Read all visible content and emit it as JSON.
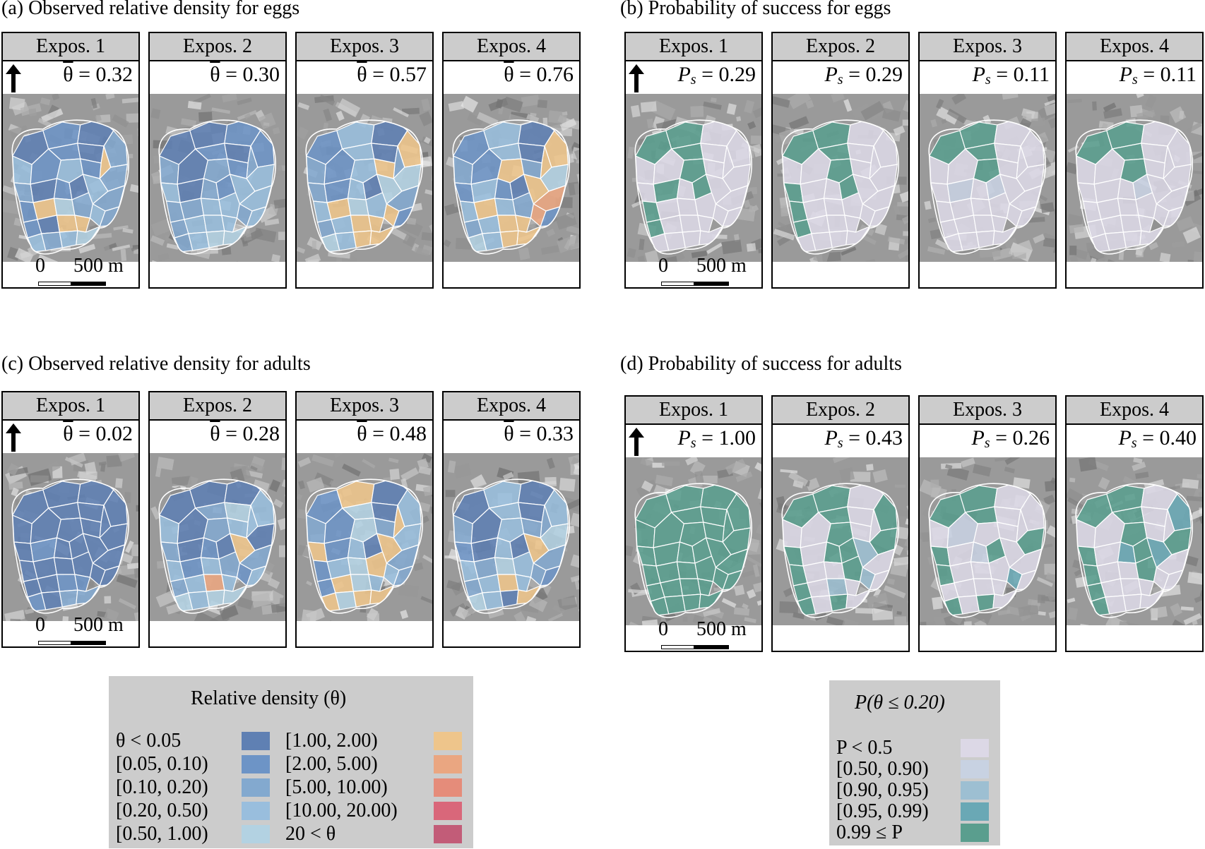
{
  "sections": [
    {
      "id": "a",
      "title": "(a) Observed relative density for eggs"
    },
    {
      "id": "b",
      "title": "(b) Probability of success for eggs"
    },
    {
      "id": "c",
      "title": "(c) Observed relative density for adults"
    },
    {
      "id": "d",
      "title": "(d) Probability of success for adults"
    }
  ],
  "scalebar": {
    "zero": "0",
    "distance": "500 m"
  },
  "colors": {
    "density": [
      "#5f80b3",
      "#6d94c6",
      "#83a9cf",
      "#99bedd",
      "#b3d2e2",
      "#eec58b",
      "#eaa681",
      "#e58c7a",
      "#d9677a",
      "#c25c78"
    ],
    "probability": [
      "#dcd8e6",
      "#c8d2e2",
      "#9dbfd2",
      "#6aa8b5",
      "#5a9e8e"
    ]
  },
  "panels": {
    "a": [
      {
        "label": "Expos. 1",
        "symbol": "θ",
        "value": "0.32",
        "cells": [
          0,
          1,
          0,
          2,
          3,
          1,
          1,
          0,
          5,
          2,
          3,
          1,
          2,
          0,
          1,
          0,
          3,
          2,
          1,
          5,
          4,
          2,
          3,
          2,
          1,
          0,
          5,
          5,
          3,
          2,
          3,
          4
        ]
      },
      {
        "label": "Expos. 2",
        "symbol": "θ",
        "value": "0.30",
        "cells": [
          0,
          0,
          1,
          1,
          2,
          0,
          1,
          0,
          2,
          3,
          2,
          1,
          3,
          0,
          2,
          1,
          3,
          3,
          2,
          2,
          3,
          3,
          2,
          3,
          2,
          3,
          3,
          3,
          2,
          3,
          4,
          4
        ]
      },
      {
        "label": "Expos. 3",
        "symbol": "θ",
        "value": "0.57",
        "cells": [
          1,
          3,
          0,
          5,
          2,
          1,
          3,
          0,
          2,
          4,
          3,
          5,
          2,
          1,
          3,
          0,
          4,
          2,
          3,
          5,
          4,
          3,
          5,
          1,
          2,
          3,
          5,
          5,
          4,
          3,
          5,
          5
        ]
      },
      {
        "label": "Expos. 4",
        "symbol": "θ",
        "value": "0.76",
        "cells": [
          1,
          3,
          0,
          5,
          2,
          1,
          3,
          0,
          5,
          4,
          5,
          2,
          1,
          3,
          1,
          0,
          5,
          6,
          3,
          5,
          3,
          2,
          6,
          1,
          2,
          3,
          5,
          5,
          4,
          3,
          5,
          5
        ]
      }
    ],
    "b": [
      {
        "label": "Expos. 1",
        "symbol": "Ps",
        "value": "0.29",
        "cells": [
          4,
          4,
          0,
          0,
          0,
          0,
          4,
          0,
          0,
          0,
          4,
          0,
          0,
          4,
          0,
          4,
          0,
          0,
          4,
          0,
          0,
          0,
          0,
          0,
          4,
          0,
          0,
          0,
          0,
          0,
          0,
          0
        ]
      },
      {
        "label": "Expos. 2",
        "symbol": "Ps",
        "value": "0.29",
        "cells": [
          4,
          4,
          0,
          0,
          0,
          0,
          4,
          0,
          0,
          0,
          4,
          0,
          4,
          0,
          0,
          4,
          0,
          0,
          4,
          0,
          0,
          0,
          0,
          0,
          4,
          0,
          0,
          0,
          0,
          0,
          0,
          0
        ]
      },
      {
        "label": "Expos. 3",
        "symbol": "Ps",
        "value": "0.11",
        "cells": [
          4,
          4,
          0,
          0,
          0,
          0,
          4,
          0,
          0,
          0,
          4,
          0,
          0,
          1,
          0,
          1,
          0,
          0,
          0,
          0,
          0,
          0,
          0,
          0,
          0,
          0,
          0,
          0,
          0,
          0,
          0,
          0
        ]
      },
      {
        "label": "Expos. 4",
        "symbol": "Ps",
        "value": "0.11",
        "cells": [
          4,
          4,
          0,
          0,
          0,
          0,
          4,
          0,
          0,
          0,
          4,
          0,
          0,
          0,
          0,
          1,
          0,
          0,
          0,
          0,
          0,
          0,
          0,
          0,
          0,
          0,
          0,
          0,
          0,
          0,
          0,
          0
        ]
      }
    ],
    "c": [
      {
        "label": "Expos. 1",
        "symbol": "θ",
        "value": "0.02",
        "cells": [
          0,
          0,
          0,
          0,
          0,
          0,
          0,
          0,
          0,
          0,
          0,
          0,
          0,
          1,
          0,
          0,
          0,
          0,
          0,
          0,
          0,
          0,
          0,
          0,
          0,
          0,
          1,
          1,
          1,
          0,
          2,
          2
        ]
      },
      {
        "label": "Expos. 2",
        "symbol": "θ",
        "value": "0.28",
        "cells": [
          0,
          0,
          0,
          3,
          3,
          0,
          2,
          4,
          3,
          0,
          2,
          3,
          2,
          0,
          1,
          0,
          5,
          2,
          3,
          1,
          3,
          2,
          1,
          3,
          2,
          3,
          6,
          3,
          4,
          3,
          4,
          4
        ]
      },
      {
        "label": "Expos. 3",
        "symbol": "θ",
        "value": "0.48",
        "cells": [
          1,
          5,
          0,
          3,
          2,
          1,
          4,
          0,
          5,
          3,
          4,
          2,
          5,
          1,
          3,
          0,
          5,
          2,
          1,
          3,
          4,
          5,
          3,
          2,
          1,
          5,
          4,
          3,
          5,
          4,
          5,
          5
        ]
      },
      {
        "label": "Expos. 4",
        "symbol": "θ",
        "value": "0.33",
        "cells": [
          0,
          3,
          0,
          3,
          2,
          0,
          3,
          0,
          2,
          4,
          3,
          2,
          1,
          0,
          3,
          0,
          5,
          2,
          3,
          2,
          4,
          3,
          2,
          1,
          2,
          3,
          5,
          3,
          4,
          3,
          0,
          5
        ]
      }
    ],
    "d": [
      {
        "label": "Expos. 1",
        "symbol": "Ps",
        "value": "1.00",
        "cells": [
          4,
          4,
          4,
          4,
          4,
          4,
          4,
          4,
          4,
          4,
          4,
          4,
          4,
          4,
          4,
          4,
          4,
          4,
          4,
          4,
          4,
          4,
          4,
          4,
          4,
          4,
          4,
          4,
          4,
          4,
          4,
          4
        ]
      },
      {
        "label": "Expos. 2",
        "symbol": "Ps",
        "value": "0.43",
        "cells": [
          4,
          4,
          0,
          4,
          0,
          0,
          4,
          0,
          0,
          4,
          4,
          0,
          4,
          0,
          4,
          4,
          2,
          0,
          4,
          0,
          0,
          4,
          2,
          0,
          4,
          0,
          2,
          0,
          4,
          0,
          4,
          0
        ]
      },
      {
        "label": "Expos. 3",
        "symbol": "Ps",
        "value": "0.26",
        "cells": [
          4,
          4,
          0,
          0,
          0,
          1,
          4,
          0,
          0,
          4,
          0,
          0,
          4,
          0,
          1,
          4,
          0,
          0,
          4,
          0,
          0,
          0,
          3,
          0,
          0,
          0,
          0,
          0,
          4,
          0,
          4,
          0
        ]
      },
      {
        "label": "Expos. 4",
        "symbol": "Ps",
        "value": "0.40",
        "cells": [
          4,
          4,
          0,
          3,
          0,
          0,
          4,
          0,
          0,
          4,
          4,
          0,
          4,
          0,
          3,
          4,
          3,
          0,
          4,
          0,
          0,
          4,
          0,
          0,
          4,
          0,
          0,
          0,
          4,
          0,
          0,
          0
        ]
      }
    ]
  },
  "legend_density": {
    "title": "Relative density (θ)",
    "items": [
      "θ < 0.05",
      "[0.05, 0.10)",
      "[0.10, 0.20)",
      "[0.20, 0.50)",
      "[0.50, 1.00)",
      "[1.00, 2.00)",
      "[2.00, 5.00)",
      "[5.00, 10.00)",
      "[10.00, 20.00)",
      "20 < θ"
    ]
  },
  "legend_probability": {
    "title": "P(θ ≤ 0.20)",
    "items": [
      "P < 0.5",
      "[0.50, 0.90)",
      "[0.90, 0.95)",
      "[0.95, 0.99)",
      "0.99 ≤ P"
    ]
  }
}
